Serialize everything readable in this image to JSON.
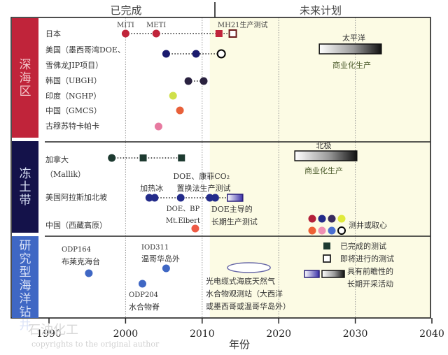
{
  "chart_data": {
    "type": "scatter",
    "title": "",
    "header_left": "已完成",
    "header_right": "未来计划",
    "xlabel": "年份",
    "xlim": [
      1990,
      2040
    ],
    "xticks": [
      1990,
      2000,
      2010,
      2020,
      2030,
      2040
    ],
    "future_start_year": 2011,
    "colors": {
      "deep_sea": "#c0243a",
      "permafrost": "#14124a",
      "research": "#3f67c4",
      "future_bg": "#fcfbe4",
      "japan": "#c0243a",
      "usa_gom": "#1a1a6e",
      "korea": "#2a2240",
      "india": "#cfe04a",
      "china_gmcs": "#e8603a",
      "gutu": "#e77aa0",
      "canada": "#1d3a30",
      "alaska": "#232b8a",
      "tibet": "#ee5a45",
      "odp": "#3f67c4"
    },
    "sections": [
      {
        "label": "深海区",
        "rows": [
          {
            "label": "日本",
            "markers": [
              {
                "year": 2000,
                "shape": "circle",
                "color": "#c0243a",
                "label": "MITI"
              },
              {
                "year": 2004,
                "shape": "circle",
                "color": "#c0243a",
                "label": "METI"
              },
              {
                "year": 2012.2,
                "shape": "square",
                "color": "#c0243a",
                "label": "MH21生产测试"
              },
              {
                "year": 2014,
                "shape": "square-open",
                "color": "#c0243a"
              }
            ],
            "connected": true
          },
          {
            "label": "美国（墨西哥湾DOE、",
            "label2": "雪佛龙JIP项目）",
            "markers": [
              {
                "year": 2005.3,
                "shape": "circle",
                "color": "#1a1a6e"
              },
              {
                "year": 2009.2,
                "shape": "circle",
                "color": "#1a1a6e"
              },
              {
                "year": 2012.5,
                "shape": "circle-open",
                "color": "#000000"
              }
            ],
            "connected": true
          },
          {
            "label": "韩国（UBGH）",
            "markers": [
              {
                "year": 2008.2,
                "shape": "circle",
                "color": "#2a2240"
              },
              {
                "year": 2010.2,
                "shape": "circle",
                "color": "#2a2240"
              }
            ],
            "connected": true
          },
          {
            "label": "印度（NGHP）",
            "markers": [
              {
                "year": 2006.2,
                "shape": "circle",
                "color": "#cfe04a"
              }
            ]
          },
          {
            "label": "中国（GMCS）",
            "markers": [
              {
                "year": 2007.1,
                "shape": "circle",
                "color": "#e8603a"
              }
            ]
          },
          {
            "label": "古穆苏特卡帕卡",
            "markers": [
              {
                "year": 2004.3,
                "shape": "circle",
                "color": "#e77aa0"
              }
            ]
          }
        ],
        "future_bar": {
          "start": 2025.3,
          "end": 2033.4,
          "label_top": "太平洋",
          "label_bottom": "商业化生产",
          "style": "gray-gradient"
        }
      },
      {
        "label": "冻土带",
        "rows": [
          {
            "label": "加拿大",
            "label2": "（Mallik）",
            "markers": [
              {
                "year": 1998.2,
                "shape": "circle",
                "color": "#1d3a30"
              },
              {
                "year": 2002.3,
                "shape": "square",
                "color": "#1d3a30"
              },
              {
                "year": 2007.3,
                "shape": "square",
                "color": "#1d3a30"
              }
            ],
            "connected": true
          },
          {
            "label": "美国阿拉斯加北坡",
            "markers": [
              {
                "year": 2003.1,
                "shape": "circle",
                "color": "#232b8a",
                "label": "加热冰"
              },
              {
                "year": 2003.8,
                "shape": "circle",
                "color": "#232b8a"
              },
              {
                "year": 2007.2,
                "shape": "circle",
                "color": "#232b8a",
                "label": "DOE、BP Mt.Elbert"
              },
              {
                "year": 2011.0,
                "shape": "circle",
                "color": "#232b8a",
                "label": "DOE、康菲CO2置换法生产测试"
              },
              {
                "year": 2011.7,
                "shape": "circle",
                "color": "#232b8a"
              },
              {
                "year": 2014.3,
                "shape": "rect-blue-gradient",
                "color": "#232b8a",
                "label": "DOE主导的长期生产测试"
              }
            ],
            "connected": true
          },
          {
            "label": "中国（西藏高原）",
            "markers": [
              {
                "year": 2009.1,
                "shape": "circle",
                "color": "#ee5a45"
              }
            ]
          }
        ],
        "future_bar": {
          "start": 2022.1,
          "end": 2030.2,
          "label_top": "北极",
          "label_bottom": "商业化生产",
          "style": "gray-gradient"
        },
        "legend_dots": {
          "label": "测井或取心",
          "row1": [
            "#b3203a",
            "#232b8a",
            "#3a2c5e",
            "#e0ea3a"
          ],
          "row2": [
            "#ee6035",
            "#ef8fb4",
            "#4a6fd0",
            "open"
          ]
        }
      },
      {
        "label": "研究型海洋钻井",
        "rows": [],
        "points": [
          {
            "year": 1995.2,
            "label": "ODP164",
            "label2": "布莱克海台",
            "color": "#3f67c4"
          },
          {
            "year": 2002.2,
            "label": "ODP204",
            "label2": "水合物脊",
            "color": "#3f67c4"
          },
          {
            "year": 2005.3,
            "label": "IOD311",
            "label2": "温哥华岛外",
            "color": "#3f67c4"
          }
        ],
        "observatory": {
          "year_start": 2013.3,
          "year_end": 2018.9,
          "label_lines": [
            "光电缆式海底天然气",
            "水合物观测站（大西洋",
            "或墨西哥或温哥华岛外）"
          ]
        }
      }
    ],
    "legend": [
      {
        "symbol": "filled-square",
        "label": "已完成的测试"
      },
      {
        "symbol": "open-square",
        "label": "即将进行的测试"
      },
      {
        "symbol": "gradient-bars",
        "label": "具有前瞻性的长期开采活动"
      }
    ],
    "watermark": [
      "石油化工",
      "copyrights to the original author"
    ]
  }
}
